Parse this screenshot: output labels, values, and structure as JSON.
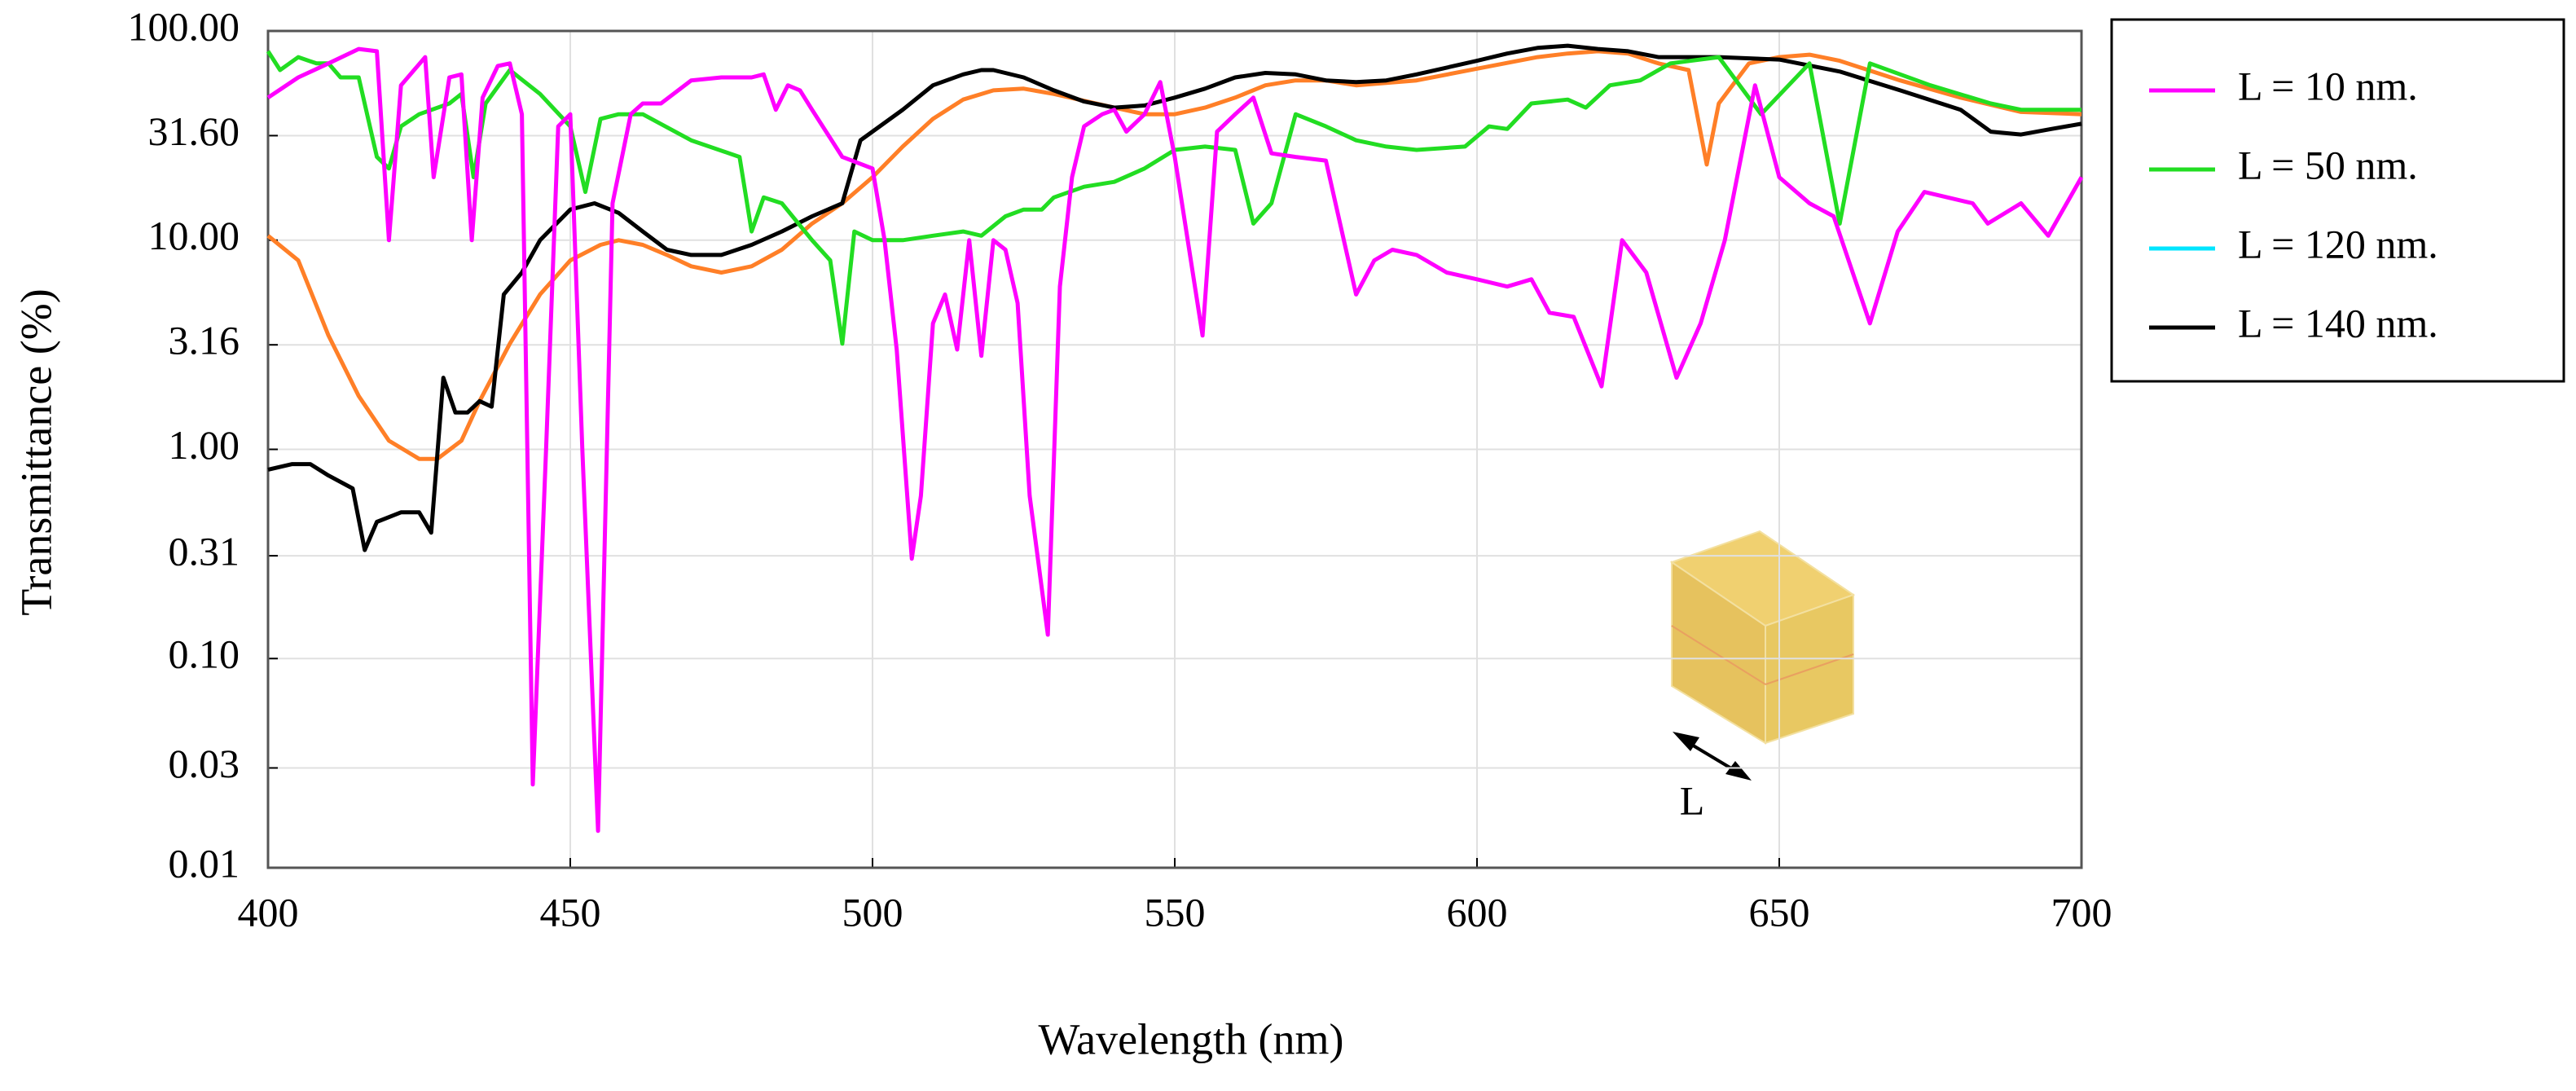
{
  "chart_data": {
    "type": "line",
    "x_label": "Wavelength (nm)",
    "y_label": "Transmittance (%)",
    "y_scale": "log",
    "grid": true,
    "legend": "outside-right",
    "inset_label": "L",
    "xlim": [
      400,
      700
    ],
    "xticks": [
      400,
      450,
      500,
      550,
      600,
      650,
      700
    ],
    "ylim": [
      0.01,
      100
    ],
    "yticks": [
      {
        "value": 100,
        "label": "100.00"
      },
      {
        "value": 31.6,
        "label": "31.60"
      },
      {
        "value": 10,
        "label": "10.00"
      },
      3.16,
      {
        "value": 1,
        "label": "1.00"
      },
      0.31,
      {
        "value": 0.1,
        "label": "0.10"
      },
      0.03,
      0.01
    ],
    "series": [
      {
        "name": "L = 10 nm.",
        "color": "#ff00ff",
        "x": [
          400,
          405,
          410,
          415,
          418,
          420,
          422,
          426,
          427.4,
          430,
          432,
          433.7,
          435.5,
          438,
          440,
          442,
          443.8,
          446,
          448,
          450,
          452,
          454.6,
          457,
          460,
          462,
          465,
          470,
          475,
          480,
          482,
          484,
          486,
          488,
          490,
          495,
          500,
          502,
          504,
          506.5,
          508,
          510,
          512,
          514,
          516,
          518,
          520,
          522,
          524,
          526,
          529,
          531,
          533,
          535,
          538,
          540,
          542,
          545,
          547.6,
          550,
          554.6,
          557,
          560,
          563,
          566,
          570,
          575,
          580,
          583,
          586,
          590,
          595,
          600,
          605,
          609,
          612,
          616,
          620.6,
          624,
          628,
          633,
          637,
          641,
          646,
          650,
          655,
          659,
          665,
          669.6,
          674,
          682,
          684.5,
          690,
          694.5,
          700
        ],
        "values": [
          48,
          60,
          70,
          82,
          80,
          10,
          55,
          75,
          20,
          60,
          62,
          10,
          48,
          68,
          70,
          40,
          0.025,
          1,
          35,
          40,
          1,
          0.015,
          15,
          40,
          45,
          45,
          58,
          60,
          60,
          62,
          42,
          55,
          52,
          42,
          25,
          22,
          10,
          3,
          0.3,
          0.6,
          4,
          5.5,
          3,
          10,
          2.8,
          10,
          9,
          5,
          0.6,
          0.13,
          6,
          20,
          35,
          40,
          42,
          33,
          40,
          57,
          25,
          3.5,
          33,
          40,
          48,
          26,
          25,
          24,
          5.5,
          8,
          9,
          8.5,
          7,
          6.5,
          6,
          6.5,
          4.5,
          4.3,
          2,
          10,
          7,
          2.2,
          4,
          10,
          55,
          20,
          15,
          13,
          4,
          11,
          17,
          15,
          12,
          15,
          10.5,
          20
        ]
      },
      {
        "name": "L = 50 nm.",
        "color": "#22dd22",
        "x": [
          400,
          402,
          405,
          408,
          410,
          412,
          415,
          418,
          420,
          422,
          425,
          430,
          432,
          434,
          436,
          440,
          445,
          450,
          452.5,
          455,
          458,
          462,
          470,
          478,
          480,
          482,
          485,
          490,
          493,
          495,
          497,
          500,
          505,
          510,
          515,
          518,
          522,
          525,
          528,
          530,
          535,
          540,
          545,
          550,
          555,
          560,
          563,
          566,
          570,
          575,
          580,
          585,
          590,
          598,
          602,
          605,
          609,
          615,
          618,
          622,
          627,
          632,
          640,
          647,
          655,
          660,
          665,
          675,
          685,
          690,
          700
        ],
        "values": [
          80,
          65,
          75,
          70,
          70,
          60,
          60,
          25,
          22,
          35,
          40,
          45,
          50,
          20,
          45,
          65,
          50,
          35,
          17,
          38,
          40,
          40,
          30,
          25,
          11,
          16,
          15,
          10,
          8,
          3.2,
          11,
          10,
          10,
          10.5,
          11,
          10.5,
          13,
          14,
          14,
          16,
          18,
          19,
          22,
          27,
          28,
          27,
          12,
          15,
          40,
          35,
          30,
          28,
          27,
          28,
          35,
          34,
          45,
          47,
          43,
          55,
          58,
          70,
          75,
          40,
          70,
          12,
          70,
          55,
          45,
          42,
          42
        ]
      },
      {
        "name": "L = 120 nm.",
        "color": "#ff7f27",
        "legend_color": "#00e5ff",
        "x": [
          400,
          405,
          410,
          415,
          420,
          425,
          428,
          432,
          435,
          440,
          445,
          450,
          455,
          458,
          462,
          466,
          470,
          475,
          480,
          485,
          490,
          495,
          500,
          505,
          510,
          515,
          520,
          525,
          530,
          540,
          545,
          550,
          555,
          560,
          565,
          570,
          575,
          580,
          590,
          600,
          610,
          615,
          620,
          625,
          630,
          635,
          638,
          640,
          645,
          650,
          655,
          660,
          670,
          680,
          690,
          700
        ],
        "values": [
          10.5,
          8,
          3.5,
          1.8,
          1.1,
          0.9,
          0.9,
          1.1,
          1.7,
          3.2,
          5.5,
          8,
          9.5,
          10,
          9.5,
          8.5,
          7.5,
          7,
          7.5,
          9,
          12,
          15,
          20,
          28,
          38,
          47,
          52,
          53,
          50,
          43,
          40,
          40,
          43,
          48,
          55,
          58,
          58,
          55,
          58,
          66,
          75,
          78,
          80,
          78,
          70,
          65,
          23,
          45,
          70,
          75,
          77,
          72,
          58,
          48,
          41,
          40
        ]
      },
      {
        "name": "L = 140 nm.",
        "color": "#000000",
        "x": [
          400,
          404,
          407,
          410,
          414,
          416,
          418,
          422,
          425,
          427,
          429,
          431,
          433,
          435,
          437,
          439,
          442,
          445,
          450,
          454,
          458,
          462,
          466,
          470,
          475,
          480,
          485,
          490,
          495,
          498,
          505,
          510,
          515,
          518,
          520,
          525,
          530,
          535,
          540,
          545,
          550,
          555,
          560,
          565,
          570,
          575,
          580,
          585,
          590,
          600,
          605,
          610,
          615,
          620,
          625,
          630,
          640,
          650,
          660,
          670,
          680,
          685,
          690,
          695,
          700
        ],
        "values": [
          0.8,
          0.85,
          0.85,
          0.75,
          0.65,
          0.33,
          0.45,
          0.5,
          0.5,
          0.4,
          2.2,
          1.5,
          1.5,
          1.7,
          1.6,
          5.5,
          7,
          10,
          14,
          15,
          13.5,
          11,
          9,
          8.5,
          8.5,
          9.5,
          11,
          13,
          15,
          30,
          42,
          55,
          62,
          65,
          65,
          60,
          52,
          46,
          43,
          44,
          48,
          53,
          60,
          63,
          62,
          58,
          57,
          58,
          62,
          72,
          78,
          83,
          85,
          82,
          80,
          75,
          75,
          73,
          64,
          52,
          42,
          33,
          32,
          34,
          36
        ]
      }
    ]
  }
}
